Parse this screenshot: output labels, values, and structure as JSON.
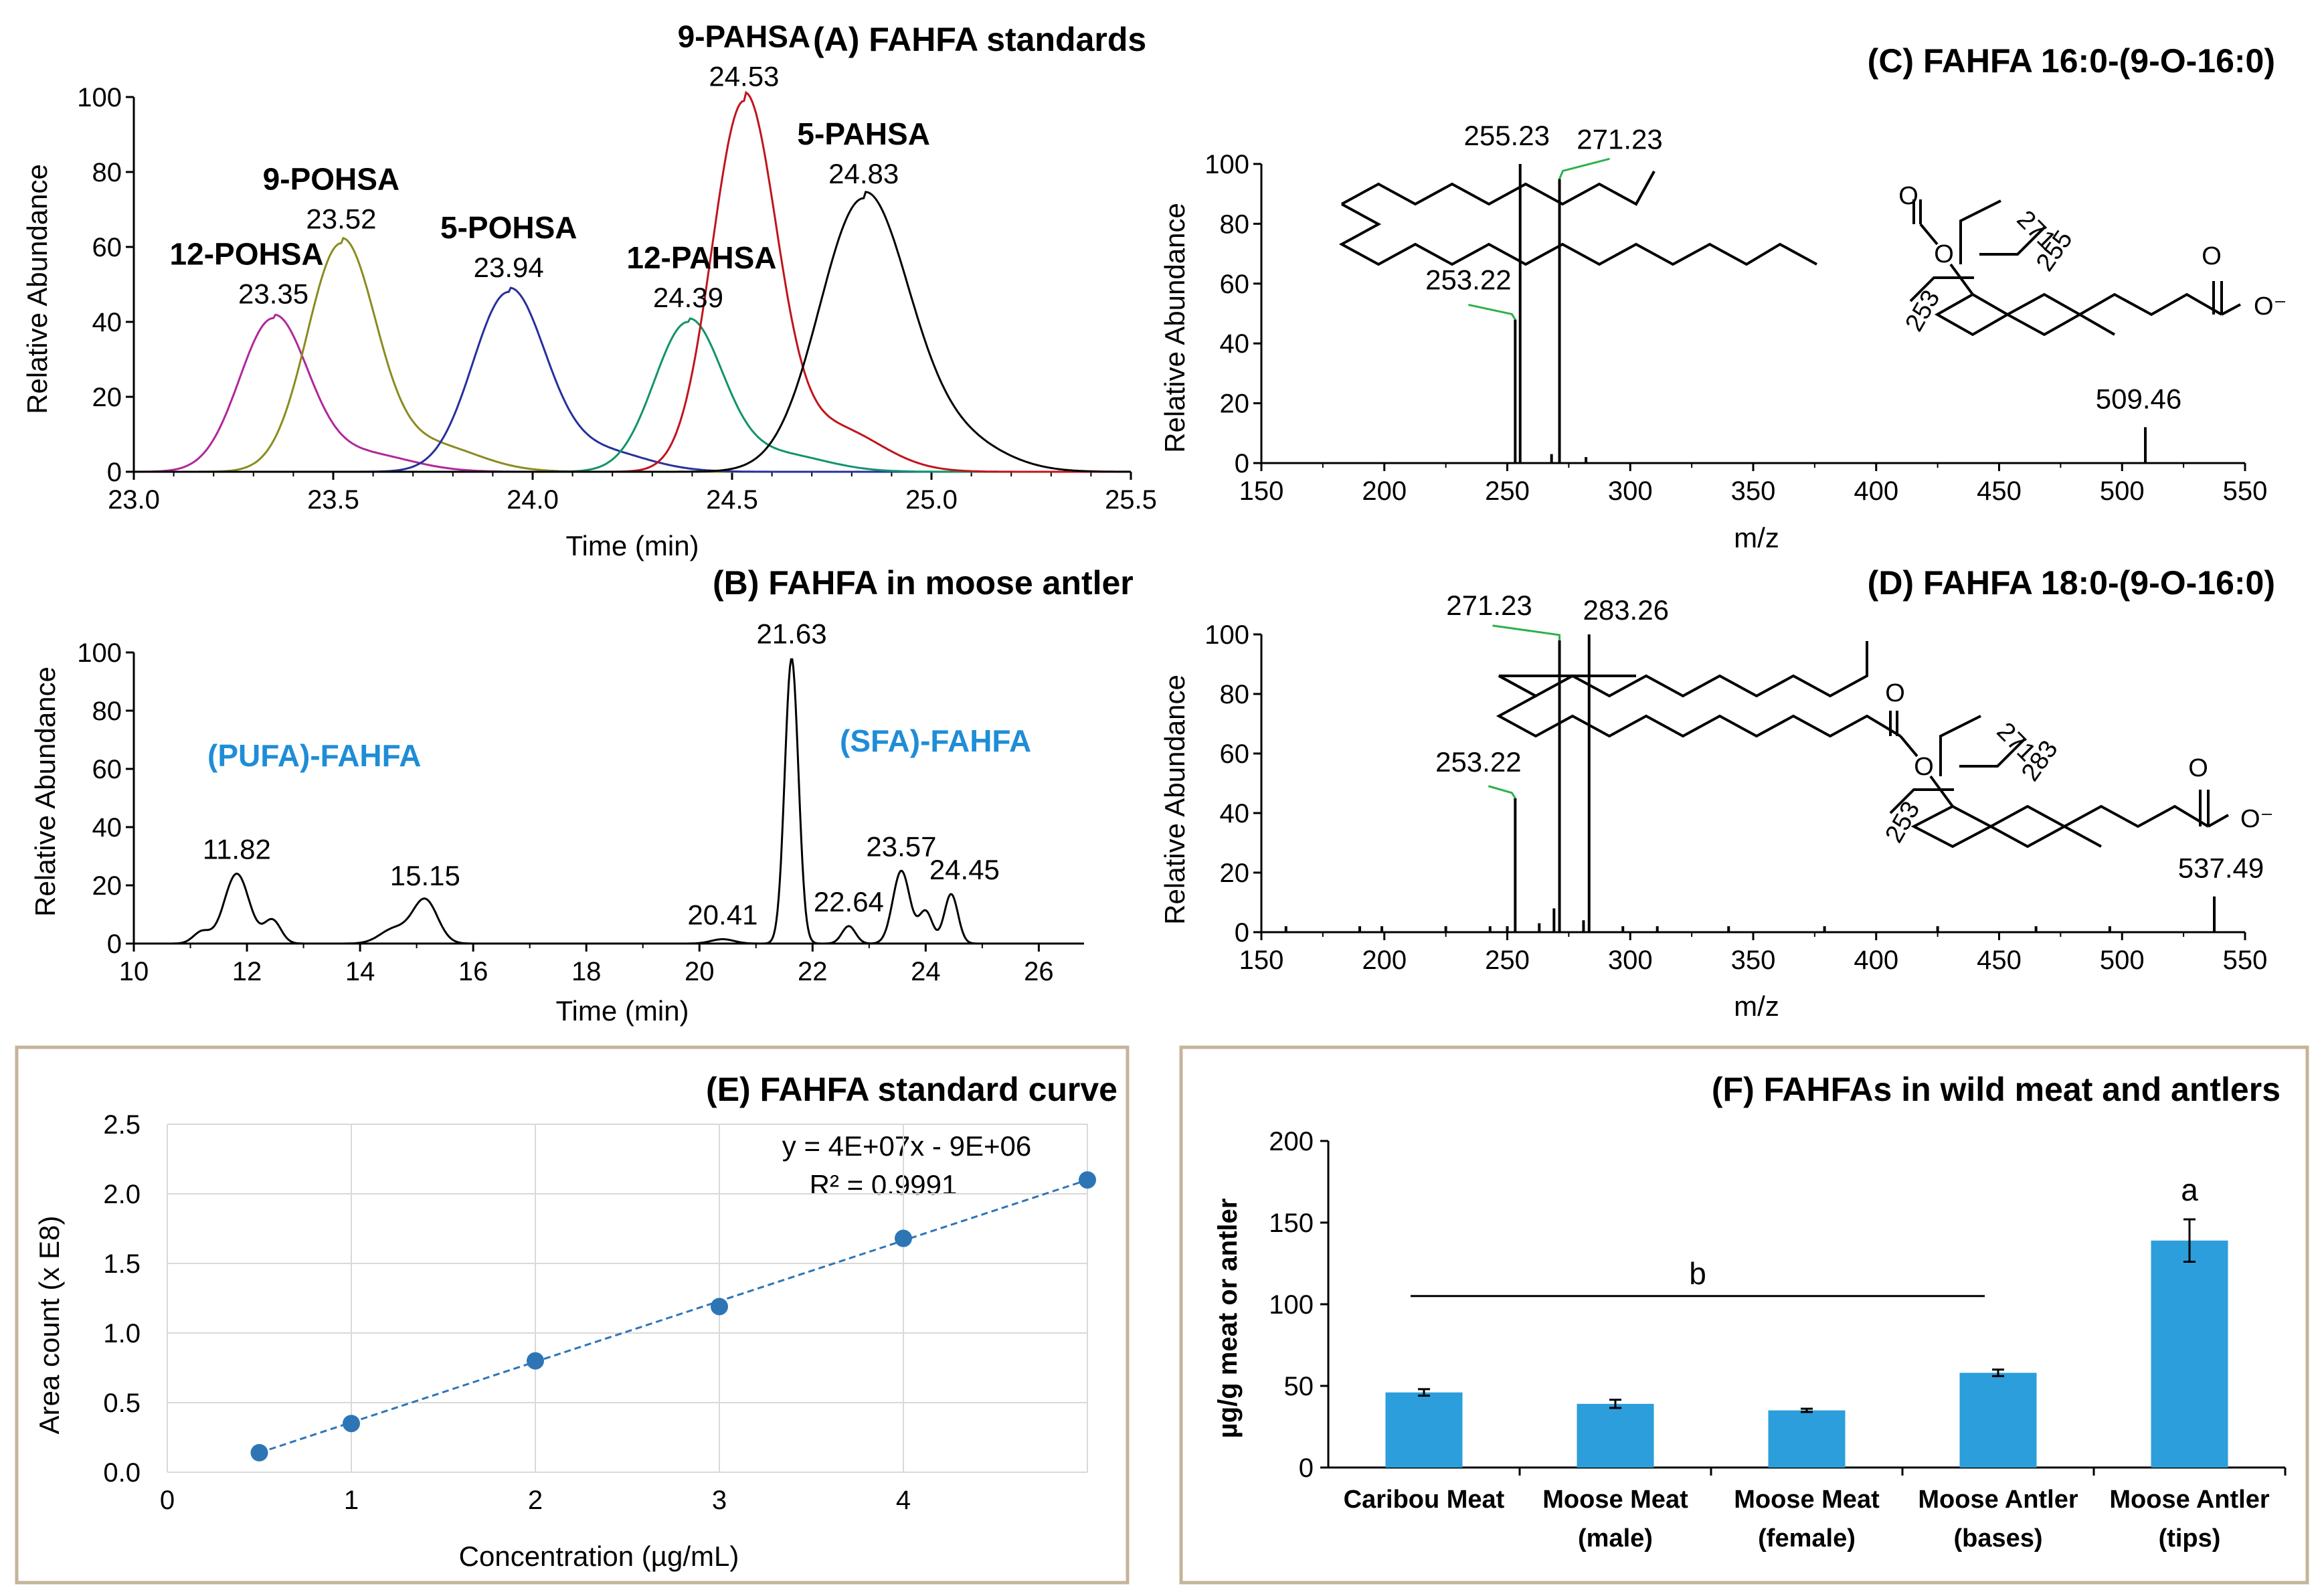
{
  "chart_data": [
    {
      "id": "A",
      "type": "line",
      "title": "(A) FAHFA standards",
      "xlabel": "Time (min)",
      "ylabel": "Relative Abundance",
      "xlim": [
        23.0,
        25.5
      ],
      "ylim": [
        0,
        100
      ],
      "xticks": [
        "23.0",
        "23.5",
        "24.0",
        "24.5",
        "25.0",
        "25.5"
      ],
      "yticks": [
        "0",
        "20",
        "40",
        "60",
        "80",
        "100"
      ],
      "series": [
        {
          "name": "12-POHSA",
          "rt": "23.35",
          "center": 23.35,
          "height": 41,
          "sigma": 0.085,
          "color": "#b0289a"
        },
        {
          "name": "9-POHSA",
          "rt": "23.52",
          "center": 23.52,
          "height": 61,
          "sigma": 0.085,
          "color": "#8b8b1e"
        },
        {
          "name": "5-POHSA",
          "rt": "23.94",
          "center": 23.94,
          "height": 48,
          "sigma": 0.09,
          "color": "#27309c"
        },
        {
          "name": "12-PAHSA",
          "rt": "24.39",
          "center": 24.39,
          "height": 40,
          "sigma": 0.085,
          "color": "#12936a"
        },
        {
          "name": "9-PAHSA",
          "rt": "24.53",
          "center": 24.53,
          "height": 99,
          "sigma": 0.08,
          "color": "#c0141c"
        },
        {
          "name": "5-PAHSA",
          "rt": "24.83",
          "center": 24.83,
          "height": 73,
          "sigma": 0.11,
          "color": "#000000"
        }
      ]
    },
    {
      "id": "B",
      "type": "line",
      "title": "(B) FAHFA in moose antler",
      "xlabel": "Time (min)",
      "ylabel": "Relative Abundance",
      "xlim": [
        10,
        26.8
      ],
      "ylim": [
        0,
        100
      ],
      "xticks": [
        "10",
        "12",
        "14",
        "16",
        "18",
        "20",
        "22",
        "24",
        "26"
      ],
      "yticks": [
        "0",
        "20",
        "40",
        "60",
        "80",
        "100"
      ],
      "groups": [
        "(PUFA)-FAHFA",
        "(SFA)-FAHFA"
      ],
      "peaks": [
        {
          "rt": "11.82",
          "x": 11.82,
          "height": 24,
          "sigma": 0.22
        },
        {
          "rt": "",
          "x": 12.45,
          "height": 8,
          "sigma": 0.15
        },
        {
          "rt": "",
          "x": 11.2,
          "height": 4,
          "sigma": 0.15
        },
        {
          "rt": "15.15",
          "x": 15.15,
          "height": 15,
          "sigma": 0.22
        },
        {
          "rt": "",
          "x": 14.6,
          "height": 5,
          "sigma": 0.25
        },
        {
          "rt": "20.41",
          "x": 20.41,
          "height": 1.5,
          "sigma": 0.2
        },
        {
          "rt": "21.63",
          "x": 21.63,
          "height": 98,
          "sigma": 0.12
        },
        {
          "rt": "22.64",
          "x": 22.64,
          "height": 6,
          "sigma": 0.12
        },
        {
          "rt": "23.57",
          "x": 23.57,
          "height": 25,
          "sigma": 0.15
        },
        {
          "rt": "",
          "x": 24.0,
          "height": 11,
          "sigma": 0.12
        },
        {
          "rt": "24.45",
          "x": 24.45,
          "height": 17,
          "sigma": 0.12
        }
      ]
    },
    {
      "id": "C",
      "type": "bar",
      "title": "(C) FAHFA 16:0-(9-O-16:0)",
      "xlabel": "m/z",
      "ylabel": "Relative Abundance",
      "xlim": [
        150,
        550
      ],
      "ylim": [
        0,
        100
      ],
      "xticks": [
        "150",
        "200",
        "250",
        "300",
        "350",
        "400",
        "450",
        "500",
        "550"
      ],
      "yticks": [
        "0",
        "20",
        "40",
        "60",
        "80",
        "100"
      ],
      "peaks": [
        {
          "mz": 253.22,
          "value": 48,
          "label": "253.22"
        },
        {
          "mz": 255.23,
          "value": 100,
          "label": "255.23"
        },
        {
          "mz": 271.23,
          "value": 95,
          "label": "271.23"
        },
        {
          "mz": 509.46,
          "value": 12,
          "label": "509.46"
        },
        {
          "mz": 268.0,
          "value": 3,
          "label": ""
        },
        {
          "mz": 282.0,
          "value": 2,
          "label": ""
        }
      ],
      "fragments": [
        "271",
        "255",
        "253"
      ]
    },
    {
      "id": "D",
      "type": "bar",
      "title": "(D) FAHFA 18:0-(9-O-16:0)",
      "xlabel": "m/z",
      "ylabel": "Relative Abundance",
      "xlim": [
        150,
        550
      ],
      "ylim": [
        0,
        100
      ],
      "xticks": [
        "150",
        "200",
        "250",
        "300",
        "350",
        "400",
        "450",
        "500",
        "550"
      ],
      "yticks": [
        "0",
        "20",
        "40",
        "60",
        "80",
        "100"
      ],
      "peaks": [
        {
          "mz": 253.22,
          "value": 45,
          "label": "253.22"
        },
        {
          "mz": 271.23,
          "value": 98,
          "label": "271.23"
        },
        {
          "mz": 283.26,
          "value": 100,
          "label": "283.26"
        },
        {
          "mz": 537.49,
          "value": 12,
          "label": "537.49"
        },
        {
          "mz": 160,
          "value": 2,
          "label": ""
        },
        {
          "mz": 190,
          "value": 2,
          "label": ""
        },
        {
          "mz": 199,
          "value": 2,
          "label": ""
        },
        {
          "mz": 225,
          "value": 2,
          "label": ""
        },
        {
          "mz": 243,
          "value": 2,
          "label": ""
        },
        {
          "mz": 250,
          "value": 2,
          "label": ""
        },
        {
          "mz": 263,
          "value": 3,
          "label": ""
        },
        {
          "mz": 269,
          "value": 8,
          "label": ""
        },
        {
          "mz": 281,
          "value": 4,
          "label": ""
        },
        {
          "mz": 297,
          "value": 2,
          "label": ""
        },
        {
          "mz": 311,
          "value": 2,
          "label": ""
        },
        {
          "mz": 340,
          "value": 2,
          "label": ""
        },
        {
          "mz": 379,
          "value": 2,
          "label": ""
        },
        {
          "mz": 425,
          "value": 2,
          "label": ""
        },
        {
          "mz": 465,
          "value": 2,
          "label": ""
        },
        {
          "mz": 495,
          "value": 2,
          "label": ""
        }
      ],
      "fragments": [
        "271",
        "283",
        "253"
      ]
    },
    {
      "id": "E",
      "type": "scatter",
      "title": "(E) FAHFA standard curve",
      "xlabel": "Concentration (µg/mL)",
      "ylabel": "Area count (x E8)",
      "xlim": [
        0,
        5
      ],
      "ylim": [
        0,
        2.5
      ],
      "xticks": [
        "0",
        "1",
        "2",
        "3",
        "4"
      ],
      "yticks": [
        "0.0",
        "0.5",
        "1.0",
        "1.5",
        "2.0",
        "2.5"
      ],
      "x": [
        0.5,
        1,
        2,
        3,
        4,
        5
      ],
      "y": [
        0.14,
        0.35,
        0.8,
        1.19,
        1.68,
        2.1
      ],
      "trendline_equation": "y = 4E+07x - 9E+06",
      "r_squared": "R² = 0.9991",
      "color": "#2e75b6"
    },
    {
      "id": "F",
      "type": "bar",
      "title": "(F) FAHFAs in wild meat and antlers",
      "ylabel": "µg/g meat  or antler",
      "ylim": [
        0,
        200
      ],
      "yticks": [
        "0",
        "50",
        "100",
        "150",
        "200"
      ],
      "categories": [
        [
          "Caribou Meat",
          ""
        ],
        [
          "Moose Meat",
          "(male)"
        ],
        [
          "Moose Meat",
          "(female)"
        ],
        [
          "Moose Antler",
          "(bases)"
        ],
        [
          "Moose Antler",
          "(tips)"
        ]
      ],
      "values": [
        46,
        39,
        35,
        58,
        139
      ],
      "errors": [
        2,
        2.5,
        1,
        2,
        13
      ],
      "significance": [
        "b",
        "a"
      ],
      "color": "#2b9edb"
    }
  ]
}
